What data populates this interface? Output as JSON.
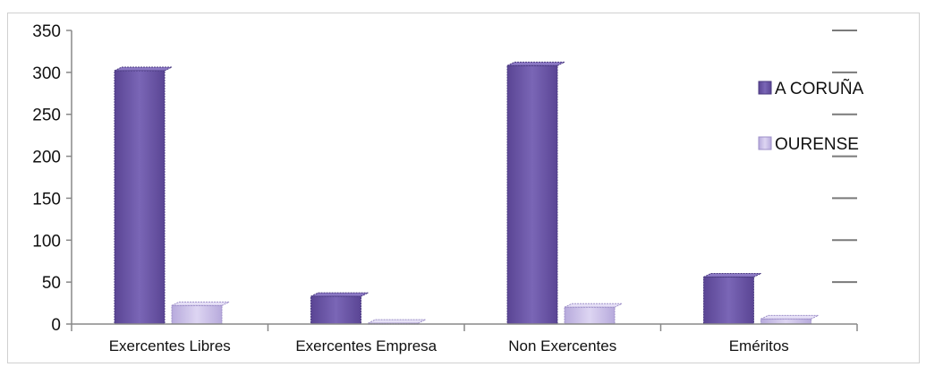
{
  "chart_data": {
    "type": "bar",
    "categories": [
      "Exercentes Libres",
      "Exercentes Empresa",
      "Non Exercentes",
      "Eméritos"
    ],
    "series": [
      {
        "name": "A CORUÑA",
        "values": [
          302,
          33,
          308,
          56
        ],
        "color": "#6a55a6"
      },
      {
        "name": "OURENSE",
        "values": [
          22,
          1,
          20,
          6
        ],
        "color": "#c9bfe6"
      }
    ],
    "yticks": [
      0,
      50,
      100,
      150,
      200,
      250,
      300,
      350
    ],
    "ylim": [
      0,
      350
    ],
    "grid": false,
    "legend_position": "right",
    "title": "",
    "xlabel": "",
    "ylabel": ""
  }
}
